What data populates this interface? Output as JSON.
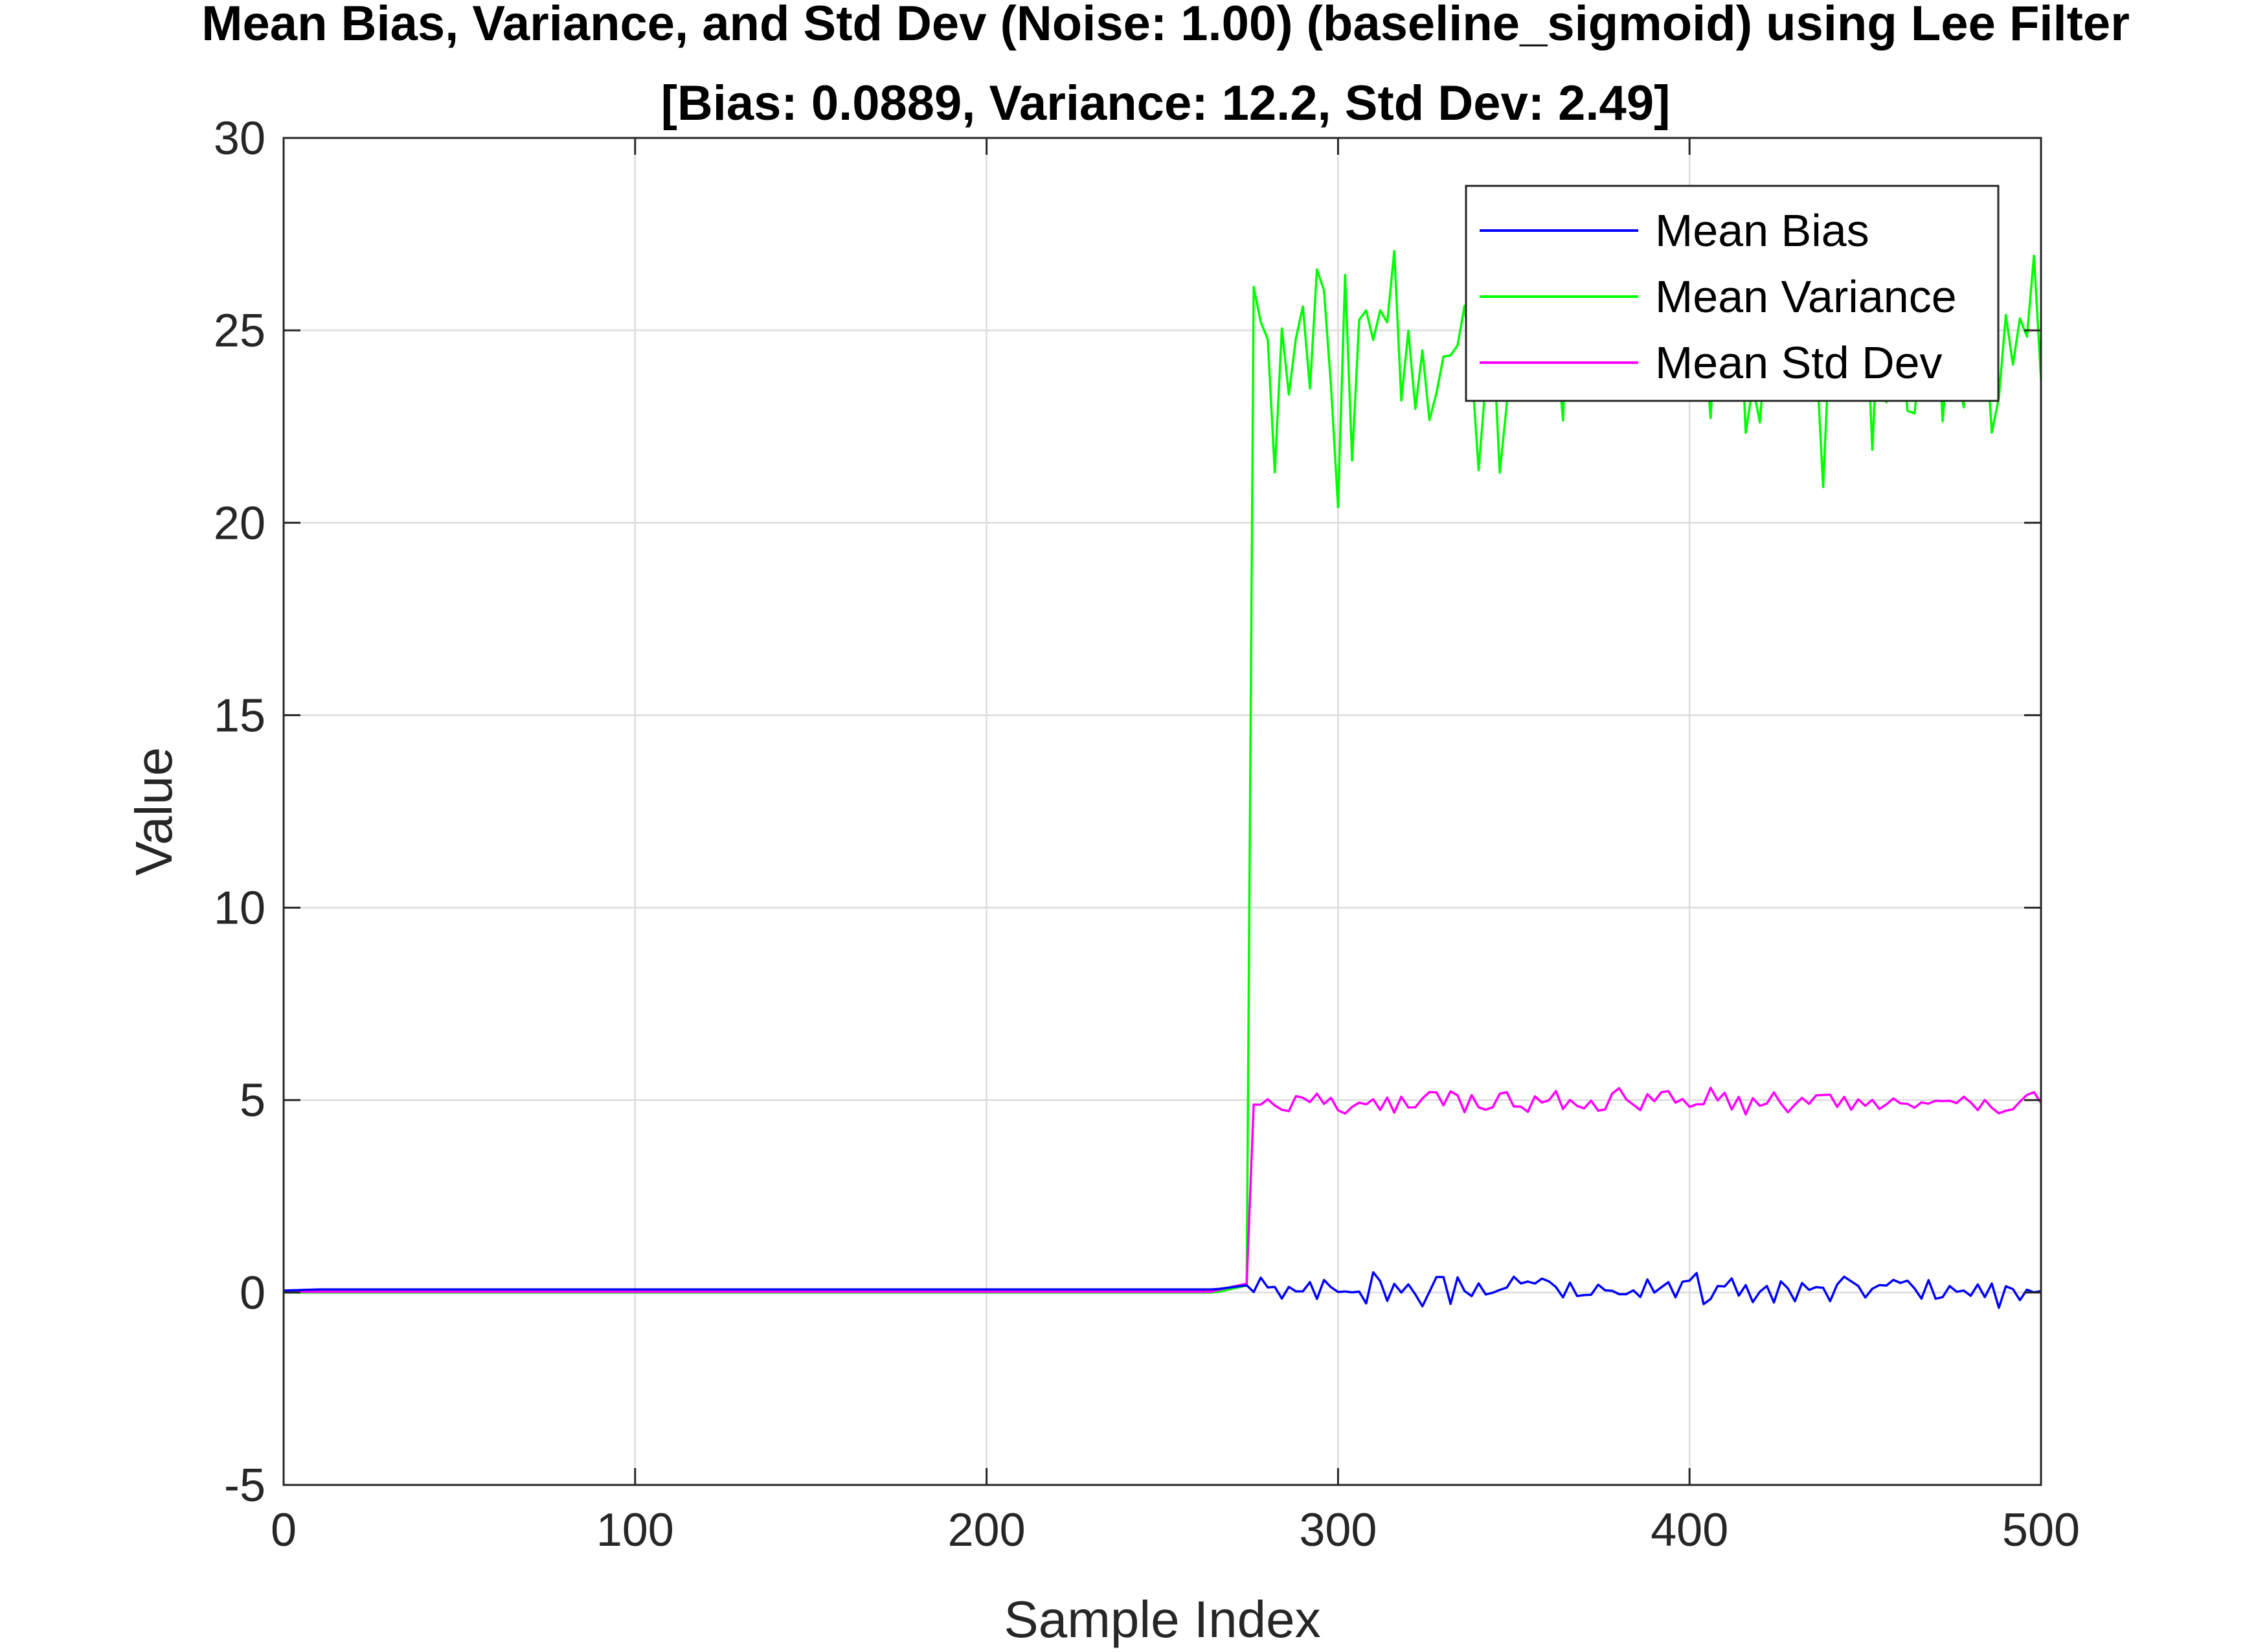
{
  "chart_data": {
    "type": "line",
    "title": "Mean Bias, Variance, and Std Dev (Noise: 1.00) (baseline_sigmoid) using Lee Filter",
    "subtitle": "[Bias: 0.0889, Variance: 12.2, Std Dev: 2.49]",
    "xlabel": "Sample Index",
    "ylabel": "Value",
    "xlim": [
      0,
      500
    ],
    "ylim": [
      -5,
      30
    ],
    "xticks": [
      "0",
      "100",
      "200",
      "300",
      "400",
      "500"
    ],
    "yticks": [
      "-5",
      "0",
      "5",
      "10",
      "15",
      "20",
      "25",
      "30"
    ],
    "grid": true,
    "legend_position": "top-right",
    "series": [
      {
        "name": "Mean Bias",
        "color": "#0000ff",
        "x": [],
        "values": []
      },
      {
        "name": "Mean Variance",
        "color": "#00ff00",
        "x": [],
        "values": []
      },
      {
        "name": "Mean Std Dev",
        "color": "#ff00ff",
        "x": [],
        "values": []
      }
    ]
  }
}
